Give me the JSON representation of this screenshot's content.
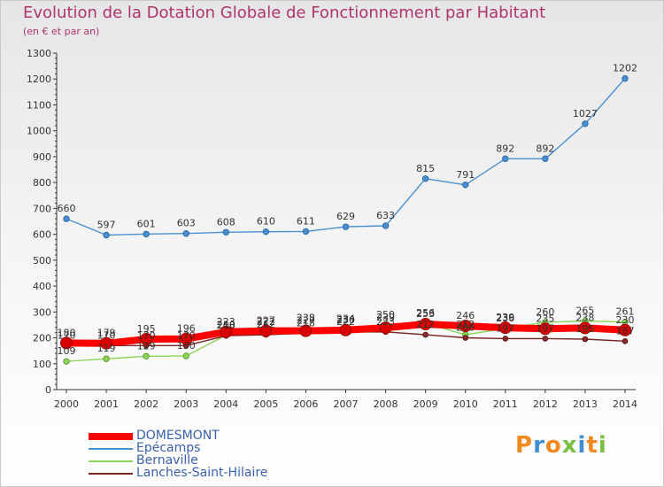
{
  "title": "Evolution de la Dotation Globale de Fonctionnement par Habitant",
  "subtitle": "(en € et par an)",
  "brand": "Proxiti",
  "brand_colors": [
    "#f08a1e",
    "#3f8fd2",
    "#f08a1e",
    "#7ac142",
    "#3f8fd2",
    "#f08a1e",
    "#7ac142"
  ],
  "chart_data": {
    "type": "line",
    "title": "Evolution de la Dotation Globale de Fonctionnement par Habitant",
    "subtitle": "(en € et par an)",
    "xlabel": "",
    "ylabel": "",
    "ylim": [
      0,
      1300
    ],
    "yticks": [
      0,
      100,
      200,
      300,
      400,
      500,
      600,
      700,
      800,
      900,
      1000,
      1100,
      1200,
      1300
    ],
    "x": [
      "2000",
      "2001",
      "2002",
      "2003",
      "2004",
      "2005",
      "2006",
      "2007",
      "2008",
      "2009",
      "2010",
      "2011",
      "2012",
      "2013",
      "2014"
    ],
    "grid": false,
    "legend_position": "bottom-left",
    "series": [
      {
        "name": "Epécamps",
        "color": "#4a90d0",
        "values": [
          660,
          597,
          601,
          603,
          608,
          610,
          611,
          629,
          633,
          815,
          791,
          892,
          892,
          1027,
          1202
        ]
      },
      {
        "name": "Bernaville",
        "color": "#8ed35a",
        "values": [
          109,
          119,
          129,
          130,
          210,
          222,
          238,
          234,
          250,
          256,
          212,
          236,
          260,
          265,
          261
        ]
      },
      {
        "name": "Lanches-Saint-Hilaire",
        "color": "#7a2424",
        "values": [
          170,
          170,
          170,
          170,
          208,
          212,
          218,
          222,
          223,
          212,
          200,
          197,
          197,
          195,
          187
        ]
      },
      {
        "name": "DOMESMONT",
        "color": "#ff0000",
        "values": [
          180,
          179,
          195,
          196,
          223,
          227,
          227,
          230,
          239,
          253,
          246,
          239,
          235,
          238,
          230
        ]
      }
    ],
    "data_labels": [
      {
        "series": "Epécamps",
        "labels": [
          "660",
          "597",
          "601",
          "603",
          "608",
          "610",
          "611",
          "629",
          "633",
          "815",
          "791",
          "892",
          "892",
          "1027",
          "1202"
        ]
      },
      {
        "series": "Bernaville",
        "labels": [
          "109",
          "119",
          "129",
          "130",
          "210",
          "222",
          "238",
          "234",
          "250",
          "256",
          "212",
          "236",
          "260",
          "265",
          "261"
        ]
      },
      {
        "series": "Lanches-Saint-Hilaire",
        "labels": [
          "170",
          "170",
          "170",
          "170",
          "208",
          "212",
          "218",
          "222",
          "223",
          "212",
          "200",
          "197",
          "197",
          "195",
          "187"
        ]
      },
      {
        "series": "DOMESMONT",
        "labels": [
          "180",
          "179",
          "195",
          "196",
          "223",
          "227",
          "227",
          "230",
          "239",
          "253",
          "246",
          "239",
          "235",
          "238",
          "230"
        ]
      }
    ]
  }
}
